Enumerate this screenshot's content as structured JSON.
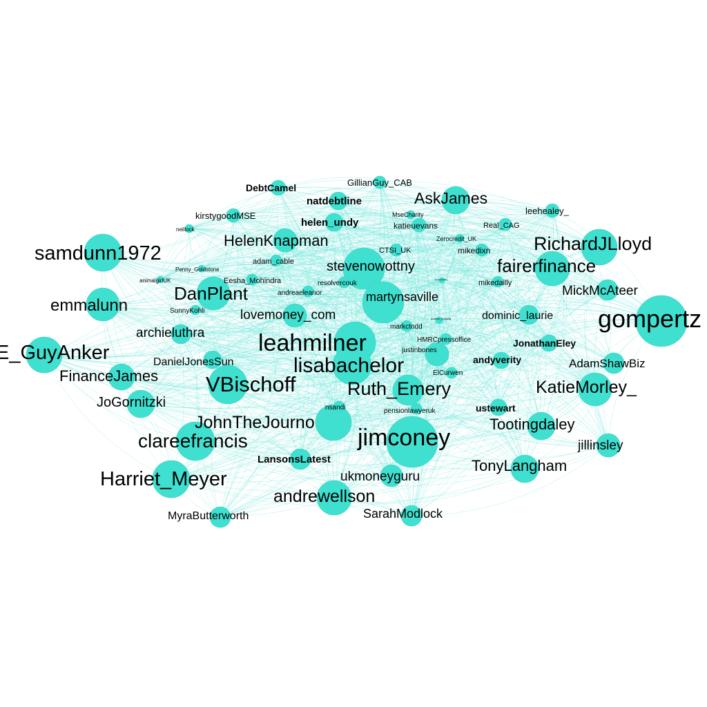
{
  "colors": {
    "node": "#40e0d0",
    "edge": "#6fe6da",
    "label": "#000000",
    "background": "#ffffff"
  },
  "nodes": [
    {
      "id": "gompertz",
      "label": "gompertz"
    },
    {
      "id": "guyanker",
      "label": "E_GuyAnker"
    },
    {
      "id": "samdunn1972",
      "label": "samdunn1972"
    },
    {
      "id": "emmalunn",
      "label": "emmalunn"
    },
    {
      "id": "harriet_meyer",
      "label": "Harriet_Meyer"
    },
    {
      "id": "clareefrancis",
      "label": "clareefrancis"
    },
    {
      "id": "jimconey",
      "label": "jimconey"
    },
    {
      "id": "leahmilner",
      "label": "leahmilner"
    },
    {
      "id": "lisabachelor",
      "label": "lisabachelor"
    },
    {
      "id": "ruth_emery",
      "label": "Ruth_Emery"
    },
    {
      "id": "vbischoff",
      "label": "VBischoff"
    },
    {
      "id": "johnthejourno",
      "label": "JohnTheJourno"
    },
    {
      "id": "andrewellson",
      "label": "andrewellson"
    },
    {
      "id": "richardjlloyd",
      "label": "RichardJLloyd"
    },
    {
      "id": "fairerfinance",
      "label": "fairerfinance"
    },
    {
      "id": "katiemorley",
      "label": "KatieMorley_"
    },
    {
      "id": "danplant",
      "label": "DanPlant"
    },
    {
      "id": "stevenowottny",
      "label": "stevenowottny"
    },
    {
      "id": "martynsaville",
      "label": "martynsaville"
    },
    {
      "id": "askjames",
      "label": "AskJames"
    },
    {
      "id": "helenknapman",
      "label": "HelenKnapman"
    },
    {
      "id": "lovemoney_com",
      "label": "lovemoney_com"
    },
    {
      "id": "financejames",
      "label": "FinanceJames"
    },
    {
      "id": "jogornitzki",
      "label": "JoGornitzki"
    },
    {
      "id": "tootingdaley",
      "label": "Tootingdaley"
    },
    {
      "id": "tonylangham",
      "label": "TonyLangham"
    },
    {
      "id": "mickmcateer",
      "label": "MickMcAteer"
    },
    {
      "id": "ukmoneyguru",
      "label": "ukmoneyguru"
    },
    {
      "id": "sarahmodlock",
      "label": "SarahModlock"
    },
    {
      "id": "archieluthra",
      "label": "archieluthra"
    },
    {
      "id": "danieljonessun",
      "label": "DanielJonesSun"
    },
    {
      "id": "adamshawbiz",
      "label": "AdamShawBiz"
    },
    {
      "id": "jillinsley",
      "label": "jillinsley"
    },
    {
      "id": "dominic_laurie",
      "label": "dominic_laurie"
    },
    {
      "id": "myrabutterworth",
      "label": "MyraButterworth"
    },
    {
      "id": "lansonslatest",
      "label": "LansonsLatest"
    },
    {
      "id": "jonathaneley",
      "label": "JonathanEley"
    },
    {
      "id": "andyverity",
      "label": "andyverity"
    },
    {
      "id": "ustewart",
      "label": "ustewart"
    },
    {
      "id": "natdebtline",
      "label": "natdebtline"
    },
    {
      "id": "helen_undy",
      "label": "helen_undy"
    },
    {
      "id": "debtcamel",
      "label": "DebtCamel"
    },
    {
      "id": "gillianguy_cab",
      "label": "GillianGuy_CAB"
    },
    {
      "id": "kirstygoodmse",
      "label": "kirstygoodMSE"
    },
    {
      "id": "leehealey_",
      "label": "leehealey_"
    },
    {
      "id": "katieuevans",
      "label": "katieuevans"
    },
    {
      "id": "real_cag",
      "label": "Real_CAG"
    },
    {
      "id": "mikedixn",
      "label": "mikedixn"
    },
    {
      "id": "mikedailly",
      "label": "mikedailly"
    },
    {
      "id": "ctsi_uk",
      "label": "CTSI_UK"
    },
    {
      "id": "adam_cable",
      "label": "adam_cable"
    },
    {
      "id": "eesha_mohindra",
      "label": "Eesha_Mohindra"
    },
    {
      "id": "resolvercouk",
      "label": "resolvercouk"
    },
    {
      "id": "andreaeleanor",
      "label": "andreaeleanor"
    },
    {
      "id": "sunnykohli",
      "label": "SunnyKohli"
    },
    {
      "id": "markctodd",
      "label": "markctodd"
    },
    {
      "id": "hmrcpressoffice",
      "label": "HMRCpressoffice"
    },
    {
      "id": "justinbones",
      "label": "justinbones"
    },
    {
      "id": "elcurwen",
      "label": "ElCurwen"
    },
    {
      "id": "nsandi",
      "label": "nsandi"
    },
    {
      "id": "pensionlawyeruk",
      "label": "pensionlawyeruk"
    },
    {
      "id": "msecharity",
      "label": "MseCharity"
    },
    {
      "id": "zerocredit_uk",
      "label": "Zerocredit_UK"
    },
    {
      "id": "neillock",
      "label": "neillock"
    },
    {
      "id": "penny_goldstone",
      "label": "Penny_Goldstone"
    },
    {
      "id": "animalgirluk",
      "label": "animalgirlUK"
    },
    {
      "id": "women_housing",
      "label": "women_housing"
    },
    {
      "id": "tiny_node",
      "label": "kevinpeachey"
    }
  ]
}
